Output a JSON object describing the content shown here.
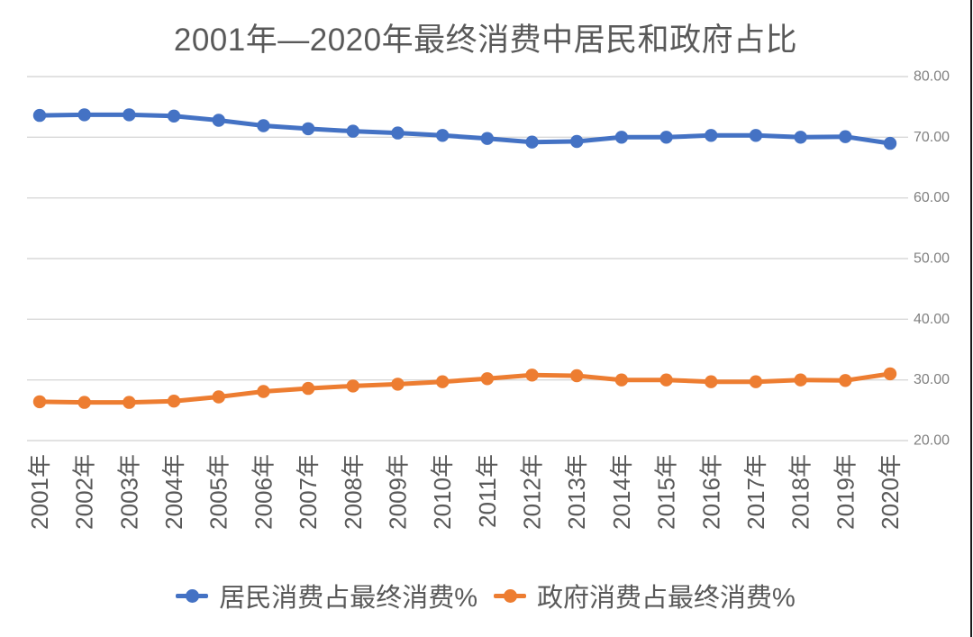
{
  "title": "2001年—2020年最终消费中居民和政府占比",
  "chart_data": {
    "type": "line",
    "title": "2001年—2020年最终消费中居民和政府占比",
    "categories": [
      "2001年",
      "2002年",
      "2003年",
      "2004年",
      "2005年",
      "2006年",
      "2007年",
      "2008年",
      "2009年",
      "2010年",
      "2011年",
      "2012年",
      "2013年",
      "2014年",
      "2015年",
      "2016年",
      "2017年",
      "2018年",
      "2019年",
      "2020年"
    ],
    "series": [
      {
        "name": "居民消费占最终消费%",
        "color": "#4472C4",
        "values": [
          73.6,
          73.7,
          73.7,
          73.5,
          72.8,
          71.9,
          71.4,
          71.0,
          70.7,
          70.3,
          69.8,
          69.2,
          69.3,
          70.0,
          70.0,
          70.3,
          70.3,
          70.0,
          70.1,
          69.0
        ]
      },
      {
        "name": "政府消费占最终消费%",
        "color": "#ED7D31",
        "values": [
          26.4,
          26.3,
          26.3,
          26.5,
          27.2,
          28.1,
          28.6,
          29.0,
          29.3,
          29.7,
          30.2,
          30.8,
          30.7,
          30.0,
          30.0,
          29.7,
          29.7,
          30.0,
          29.9,
          31.0
        ]
      }
    ],
    "xlabel": "",
    "ylabel": "",
    "ylim": [
      20,
      80
    ],
    "y_axis_side": "right",
    "y_tick_values": [
      80,
      70,
      60,
      50,
      40,
      30,
      20
    ],
    "y_tick_labels": [
      "80.00",
      "70.00",
      "60.00",
      "50.00",
      "40.00",
      "30.00",
      "20.00"
    ],
    "grid": true,
    "legend_position": "bottom"
  },
  "style": {
    "grid_color": "#D9D9D9",
    "axis_label_color": "#808080",
    "category_label_color": "#595959",
    "title_color": "#595959"
  }
}
